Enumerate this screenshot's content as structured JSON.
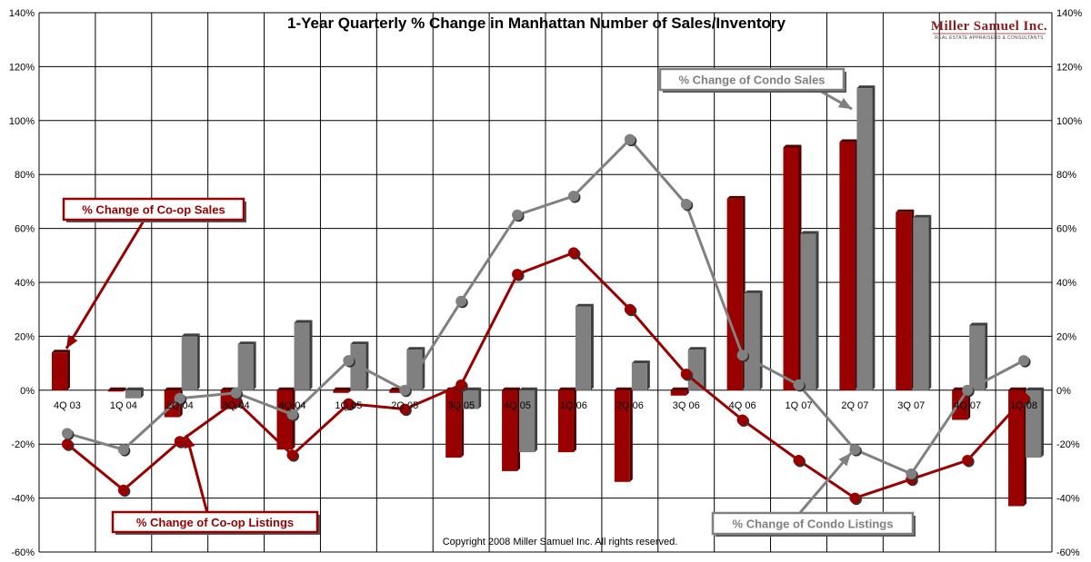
{
  "chart_data": {
    "type": "bar",
    "title": "1-Year Quarterly % Change in Manhattan Number of Sales/Inventory",
    "categories": [
      "4Q 03",
      "1Q 04",
      "2Q 04",
      "3Q 04",
      "4Q 04",
      "1Q 05",
      "2Q 05",
      "3Q 05",
      "4Q 05",
      "1Q 06",
      "2Q 06",
      "3Q 06",
      "4Q 06",
      "1Q 07",
      "2Q 07",
      "3Q 07",
      "4Q 07",
      "1Q 08"
    ],
    "ylim": [
      -60,
      140
    ],
    "yticks": [
      "-60%",
      "-40%",
      "-20%",
      "0%",
      "20%",
      "40%",
      "60%",
      "80%",
      "100%",
      "120%",
      "140%"
    ],
    "grid": true,
    "series": [
      {
        "name": "% Change of Co-op Sales",
        "kind": "bar",
        "color": "#990000",
        "values": [
          14,
          -0.5,
          -10,
          -7,
          -22,
          -1,
          -1,
          -25,
          -30,
          -23,
          -34,
          -2,
          71,
          90,
          92,
          66,
          -11,
          -43
        ]
      },
      {
        "name": "% Change of Condo Sales",
        "kind": "bar",
        "color": "#808080",
        "values": [
          0,
          -3,
          20,
          17,
          25,
          17,
          15,
          -7,
          -23,
          31,
          10,
          15,
          36,
          58,
          112,
          64,
          24,
          -25
        ]
      },
      {
        "name": "% Change of Co-op Listings",
        "kind": "line",
        "color": "#990000",
        "values": [
          -20,
          -37,
          -19,
          -4,
          -24,
          -5,
          -7,
          2,
          43,
          51,
          30,
          6,
          -11,
          -26,
          -40,
          -33,
          -26,
          -3
        ]
      },
      {
        "name": "% Change of Condo Listings",
        "kind": "line",
        "color": "#808080",
        "values": [
          -16,
          -22,
          -3,
          -1,
          -9,
          11,
          0,
          33,
          65,
          72,
          93,
          69,
          13,
          2,
          -22,
          -31,
          0,
          11
        ]
      }
    ],
    "callouts": {
      "coop_sales": "% Change of Co-op Sales",
      "condo_sales": "% Change of Condo Sales",
      "coop_listings": "% Change of Co-op Listings",
      "condo_listings": "% Change of Condo Listings"
    },
    "copyright": "Copyright 2008 Miller Samuel Inc. All rights reserved.",
    "logo": {
      "name": "Miller Samuel Inc.",
      "tagline": "REAL ESTATE APPRAISERS & CONSULTANTS"
    }
  }
}
